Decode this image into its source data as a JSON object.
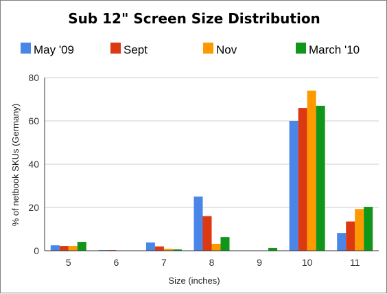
{
  "chart_data": {
    "type": "bar",
    "title": "Sub 12\" Screen Size Distribution",
    "xlabel": "Size (inches)",
    "ylabel": "% of netbook SKUs (Germany)",
    "categories": [
      "5",
      "6",
      "7",
      "8",
      "9",
      "10",
      "11"
    ],
    "series": [
      {
        "name": "May '09",
        "color": "#4a86e8",
        "values": [
          2.5,
          0.3,
          3.8,
          25,
          0,
          60,
          8.2
        ]
      },
      {
        "name": "Sept",
        "color": "#dc3912",
        "values": [
          2.2,
          0.3,
          2.0,
          16,
          0,
          66,
          13.5
        ]
      },
      {
        "name": "Nov",
        "color": "#ff9900",
        "values": [
          2.2,
          0,
          0.9,
          3.2,
          0,
          74,
          19.3
        ]
      },
      {
        "name": "March '10",
        "color": "#109618",
        "values": [
          4.1,
          0,
          0.6,
          6.3,
          1.3,
          67,
          20.3
        ]
      }
    ],
    "ylim": [
      0,
      80
    ],
    "yticks": [
      0,
      20,
      40,
      60,
      80
    ],
    "grid": true,
    "legend_position": "top"
  }
}
